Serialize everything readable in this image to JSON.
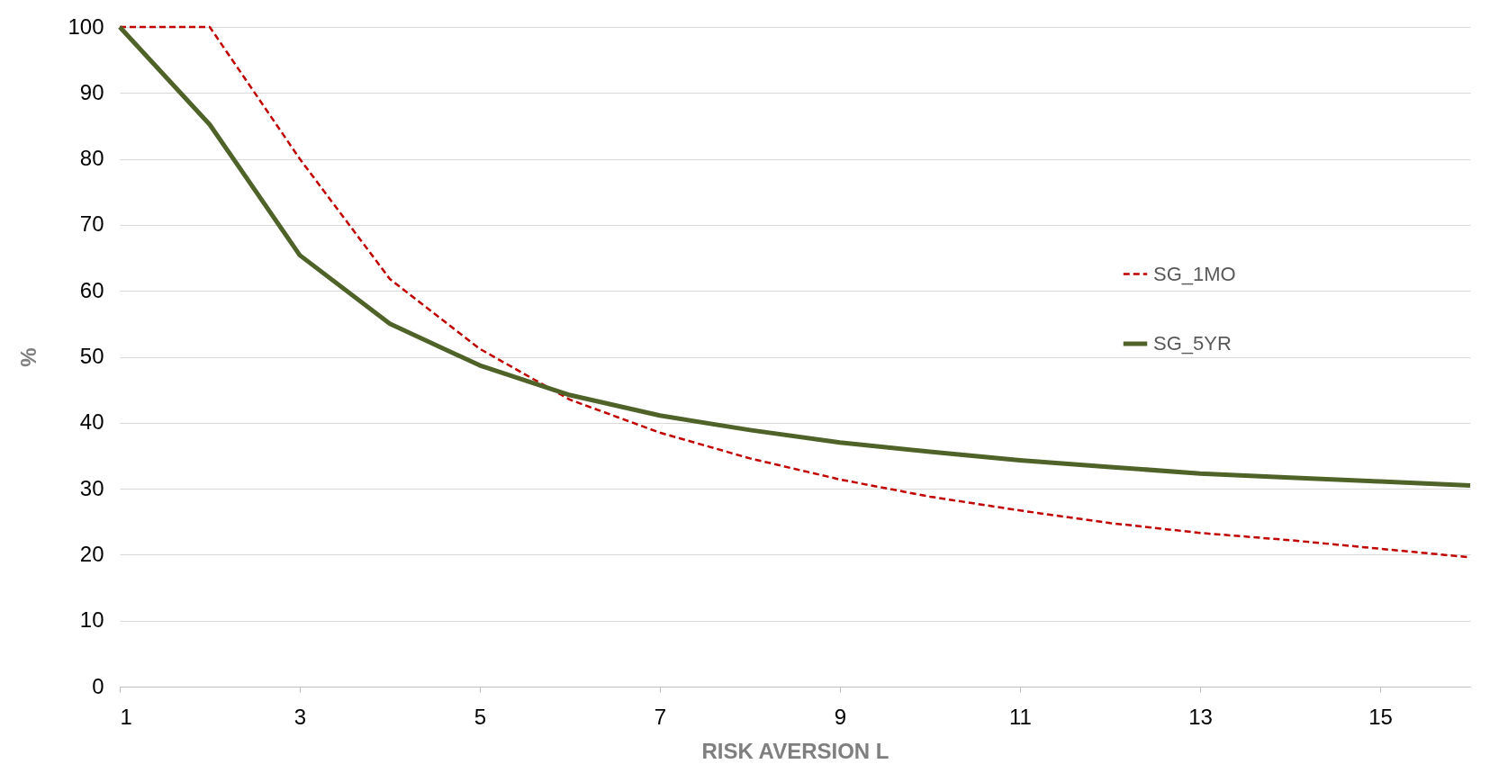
{
  "chart_data": {
    "type": "line",
    "xlabel": "RISK AVERSION L",
    "ylabel": "%",
    "x": [
      1,
      2,
      3,
      4,
      5,
      6,
      7,
      8,
      9,
      10,
      11,
      12,
      13,
      14,
      15,
      16
    ],
    "series": [
      {
        "name": "SG_1MO",
        "color": "#c00000",
        "line_style": "dashed",
        "values": [
          100,
          100,
          80,
          61.8,
          51.2,
          43.5,
          38.5,
          34.6,
          31.4,
          28.8,
          26.7,
          24.8,
          23.3,
          22.2,
          20.9,
          19.6
        ]
      },
      {
        "name": "SG_5YR",
        "color": "#4f6228",
        "line_style": "solid",
        "values": [
          100,
          85.2,
          65.4,
          55,
          48.7,
          44.2,
          41.1,
          38.9,
          37,
          35.6,
          34.3,
          33.3,
          32.3,
          31.7,
          31.1,
          30.5
        ]
      }
    ],
    "xlim": [
      1,
      16
    ],
    "xticks": [
      1,
      3,
      5,
      7,
      9,
      11,
      13,
      15
    ],
    "ylim": [
      0,
      100
    ],
    "yticks": [
      0,
      10,
      20,
      30,
      40,
      50,
      60,
      70,
      80,
      90,
      100
    ],
    "grid": "y",
    "legend": "top right"
  }
}
